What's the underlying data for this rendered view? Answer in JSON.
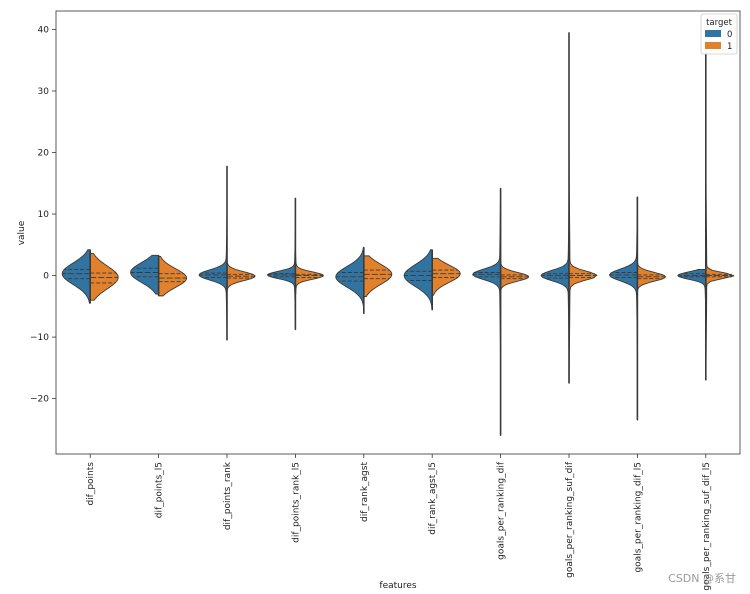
{
  "chart_data": {
    "type": "violin",
    "split": true,
    "inner": "quartile",
    "xlabel": "features",
    "ylabel": "value",
    "ylim": [
      -29,
      43
    ],
    "yticks": [
      -20,
      -10,
      0,
      10,
      20,
      30,
      40
    ],
    "legend": {
      "title": "target",
      "placement": "top-right",
      "entries": [
        "0",
        "1"
      ]
    },
    "colors": {
      "0": "#3274a1",
      "1": "#e1812c",
      "outline": "#3a3a3a"
    },
    "categories": [
      "dif_points",
      "dif_points_l5",
      "dif_points_rank",
      "dif_points_rank_l5",
      "dif_rank_agst",
      "dif_rank_agst_l5",
      "goals_per_ranking_dif",
      "goals_per_ranking_suf_dif",
      "goals_per_ranking_dif_l5",
      "goals_per_ranking_suf_dif_l5"
    ],
    "series": [
      {
        "name": "0",
        "violins": [
          {
            "min": -4.5,
            "max": 4.2,
            "q1": -0.5,
            "median": 0.3,
            "q3": 1.0
          },
          {
            "min": -3.0,
            "max": 3.3,
            "q1": -0.2,
            "median": 0.5,
            "q3": 1.2
          },
          {
            "min": -10.5,
            "max": 17.8,
            "q1": -0.3,
            "median": 0.1,
            "q3": 0.4
          },
          {
            "min": -8.8,
            "max": 12.6,
            "q1": -0.2,
            "median": 0.1,
            "q3": 0.3
          },
          {
            "min": -6.2,
            "max": 4.6,
            "q1": -0.9,
            "median": -0.2,
            "q3": 0.5
          },
          {
            "min": -5.6,
            "max": 4.2,
            "q1": -0.8,
            "median": 0.0,
            "q3": 0.7
          },
          {
            "min": -26.0,
            "max": 14.2,
            "q1": -0.2,
            "median": 0.2,
            "q3": 0.5
          },
          {
            "min": -13.5,
            "max": 18.2,
            "q1": -0.4,
            "median": 0.0,
            "q3": 0.3
          },
          {
            "min": -23.5,
            "max": 12.8,
            "q1": -0.3,
            "median": 0.1,
            "q3": 0.5
          },
          {
            "min": -16.5,
            "max": 1.0,
            "q1": -0.2,
            "median": 0.0,
            "q3": 0.3
          }
        ]
      },
      {
        "name": "1",
        "violins": [
          {
            "min": -4.0,
            "max": 3.6,
            "q1": -1.2,
            "median": -0.3,
            "q3": 0.4
          },
          {
            "min": -3.3,
            "max": 3.1,
            "q1": -1.0,
            "median": -0.4,
            "q3": 0.3
          },
          {
            "min": -3.5,
            "max": 3.2,
            "q1": -0.4,
            "median": -0.1,
            "q3": 0.2
          },
          {
            "min": -3.0,
            "max": 9.5,
            "q1": -0.3,
            "median": 0.0,
            "q3": 0.2
          },
          {
            "min": -3.4,
            "max": 3.2,
            "q1": -0.5,
            "median": 0.2,
            "q3": 0.9
          },
          {
            "min": -3.2,
            "max": 2.8,
            "q1": -0.3,
            "median": 0.3,
            "q3": 0.9
          },
          {
            "min": -2.8,
            "max": 2.2,
            "q1": -0.5,
            "median": -0.2,
            "q3": 0.1
          },
          {
            "min": -17.5,
            "max": 39.5,
            "q1": -0.3,
            "median": 0.0,
            "q3": 0.3
          },
          {
            "min": -3.0,
            "max": 2.0,
            "q1": -0.5,
            "median": -0.2,
            "q3": 0.1
          },
          {
            "min": -17.0,
            "max": 36.5,
            "q1": -0.2,
            "median": 0.0,
            "q3": 0.2
          }
        ]
      }
    ]
  },
  "watermark": "CSDN @系甘"
}
